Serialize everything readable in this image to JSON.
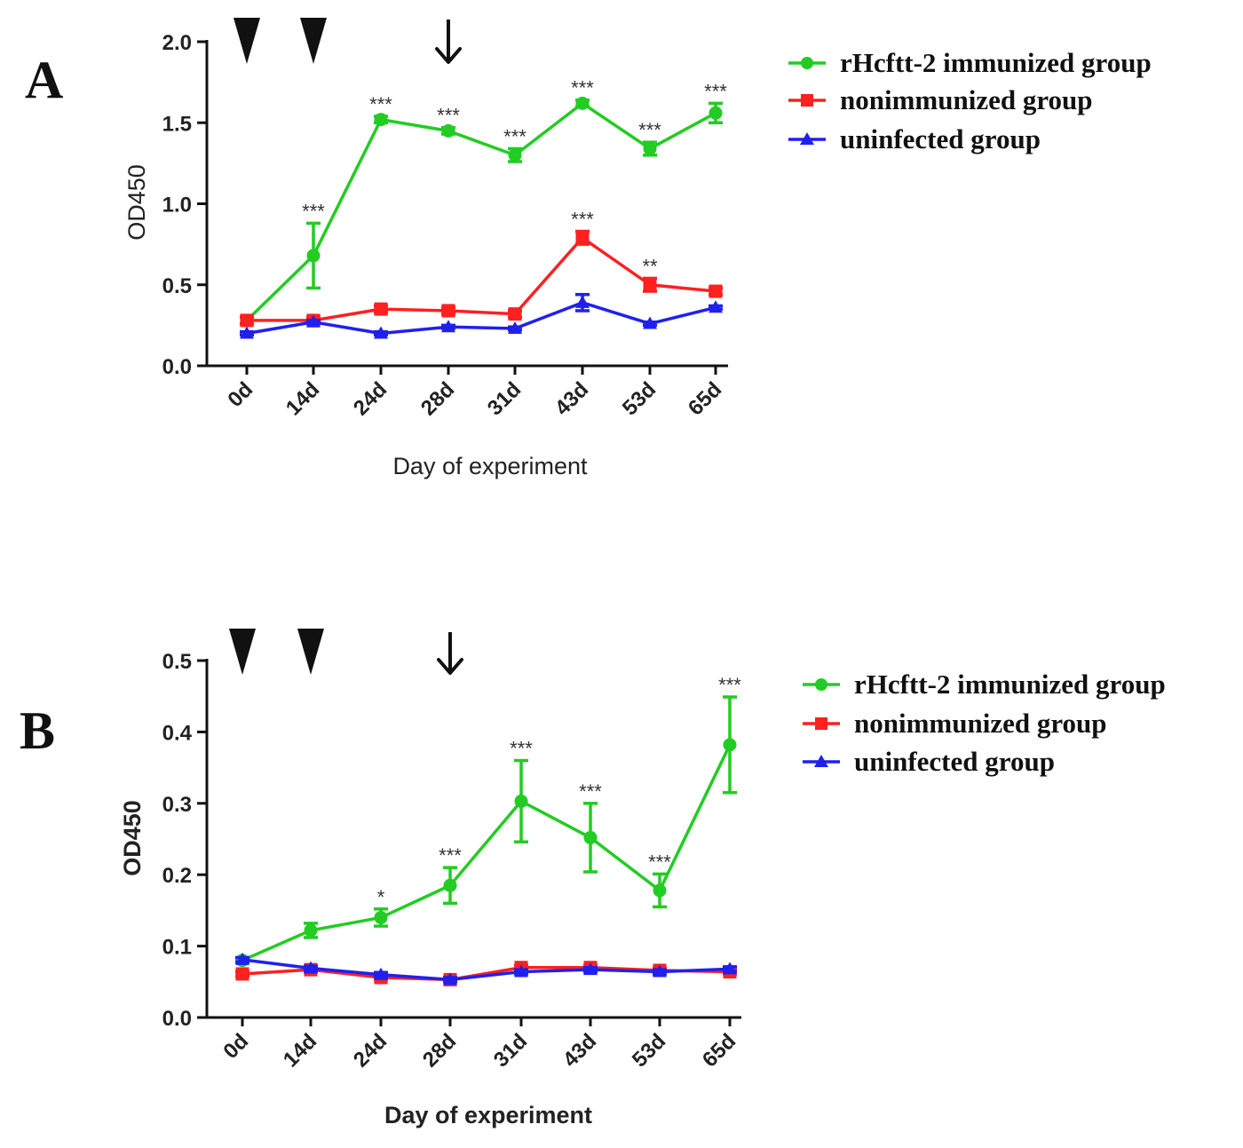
{
  "figure": {
    "panels": [
      {
        "label": "A"
      },
      {
        "label": "B"
      }
    ]
  },
  "chart_data": [
    {
      "type": "line",
      "panel_label": "A",
      "title": "",
      "xlabel": "Day of experiment",
      "ylabel": "OD450",
      "categories": [
        "0d",
        "14d",
        "24d",
        "28d",
        "31d",
        "43d",
        "53d",
        "65d"
      ],
      "ylim": [
        0,
        2.0
      ],
      "yticks": [
        "0.0",
        "0.5",
        "1.0",
        "1.5",
        "2.0"
      ],
      "ytick_values": [
        0,
        0.5,
        1.0,
        1.5,
        2.0
      ],
      "markers": {
        "immunization_arrowheads_at": [
          "0d",
          "14d"
        ],
        "challenge_arrow_at": "28d"
      },
      "legend_position": "top-right",
      "series": [
        {
          "name": "rHcftt-2 immunized group",
          "color": "#22cc22",
          "marker": "circle",
          "values": [
            0.28,
            0.68,
            1.52,
            1.45,
            1.3,
            1.62,
            1.34,
            1.56
          ],
          "errors": [
            0.02,
            0.2,
            0.02,
            0.02,
            0.04,
            0.02,
            0.04,
            0.06
          ],
          "significance": [
            "",
            "***",
            "***",
            "***",
            "***",
            "***",
            "***",
            "***"
          ]
        },
        {
          "name": "nonimmunized group",
          "color": "#ff2020",
          "marker": "square",
          "values": [
            0.28,
            0.28,
            0.35,
            0.34,
            0.32,
            0.79,
            0.5,
            0.46
          ],
          "errors": [
            0.02,
            0.02,
            0.02,
            0.02,
            0.02,
            0.04,
            0.04,
            0.02
          ],
          "significance": [
            "",
            "",
            "",
            "",
            "",
            "***",
            "**",
            ""
          ]
        },
        {
          "name": "uninfected group",
          "color": "#2020ee",
          "marker": "triangle",
          "values": [
            0.2,
            0.27,
            0.2,
            0.24,
            0.23,
            0.39,
            0.26,
            0.36
          ],
          "errors": [
            0.01,
            0.01,
            0.01,
            0.01,
            0.01,
            0.05,
            0.01,
            0.01
          ],
          "significance": [
            "",
            "",
            "",
            "",
            "",
            "",
            "",
            ""
          ]
        }
      ]
    },
    {
      "type": "line",
      "panel_label": "B",
      "title": "",
      "xlabel": "Day of experiment",
      "ylabel": "OD450",
      "categories": [
        "0d",
        "14d",
        "24d",
        "28d",
        "31d",
        "43d",
        "53d",
        "65d"
      ],
      "ylim": [
        0,
        0.5
      ],
      "yticks": [
        "0.0",
        "0.1",
        "0.2",
        "0.3",
        "0.4",
        "0.5"
      ],
      "ytick_values": [
        0,
        0.1,
        0.2,
        0.3,
        0.4,
        0.5
      ],
      "markers": {
        "immunization_arrowheads_at": [
          "0d",
          "14d"
        ],
        "challenge_arrow_at": "28d"
      },
      "legend_position": "top-right",
      "series": [
        {
          "name": "rHcftt-2 immunized group",
          "color": "#22cc22",
          "marker": "circle",
          "values": [
            0.08,
            0.122,
            0.14,
            0.185,
            0.303,
            0.252,
            0.178,
            0.382
          ],
          "errors": [
            0.003,
            0.01,
            0.012,
            0.025,
            0.057,
            0.048,
            0.023,
            0.067
          ],
          "significance": [
            "",
            "",
            "*",
            "***",
            "***",
            "***",
            "***",
            "***"
          ]
        },
        {
          "name": "nonimmunized group",
          "color": "#ff2020",
          "marker": "square",
          "values": [
            0.061,
            0.067,
            0.056,
            0.053,
            0.07,
            0.07,
            0.066,
            0.064
          ],
          "errors": [
            0.003,
            0.003,
            0.003,
            0.003,
            0.003,
            0.003,
            0.003,
            0.003
          ],
          "significance": [
            "",
            "",
            "",
            "",
            "",
            "",
            "",
            ""
          ]
        },
        {
          "name": "uninfected group",
          "color": "#2020ee",
          "marker": "triangle",
          "values": [
            0.081,
            0.069,
            0.06,
            0.053,
            0.064,
            0.067,
            0.064,
            0.068
          ],
          "errors": [
            0.003,
            0.003,
            0.003,
            0.003,
            0.003,
            0.003,
            0.003,
            0.003
          ],
          "significance": [
            "",
            "",
            "",
            "",
            "",
            "",
            "",
            ""
          ]
        }
      ]
    }
  ]
}
